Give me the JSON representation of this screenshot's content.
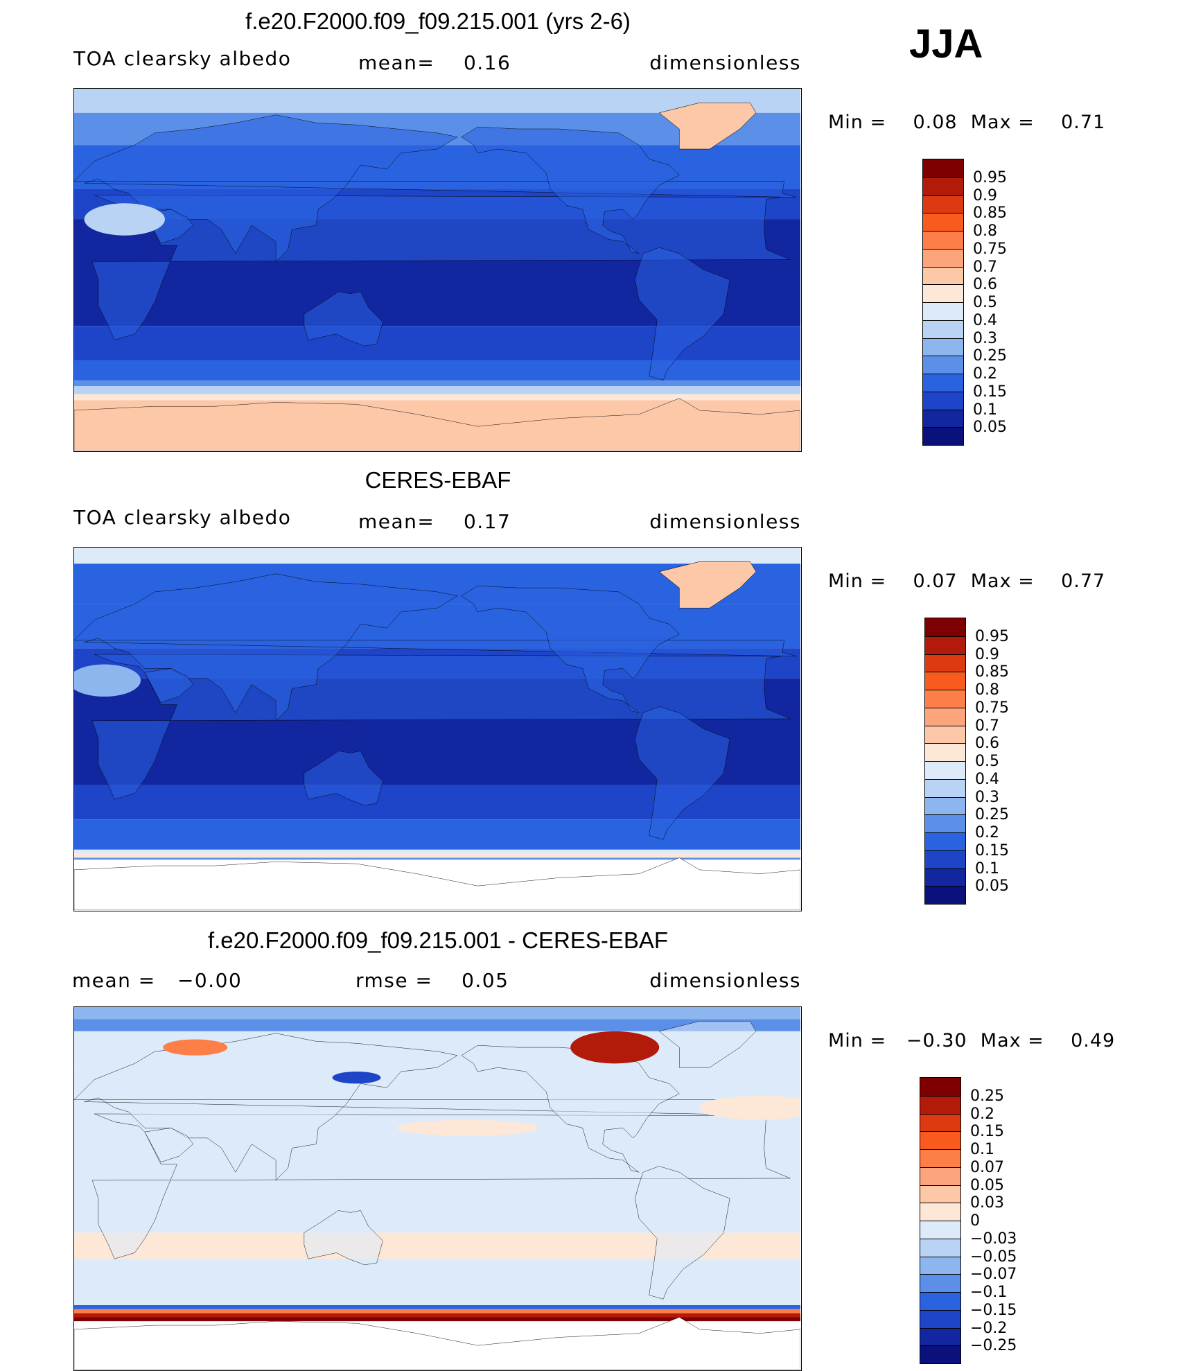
{
  "season": "JJA",
  "panels": [
    {
      "title": "f.e20.F2000.f09_f09.215.001 (yrs 2-6)",
      "left_text": "TOA clearsky albedo",
      "mid_text": "mean=    0.16",
      "right_text": "dimensionless",
      "minmax_text": "Min =    0.08  Max =    0.71",
      "colorbar": {
        "labels": [
          "0.95",
          "0.9",
          "0.85",
          "0.8",
          "0.75",
          "0.7",
          "0.6",
          "0.5",
          "0.4",
          "0.3",
          "0.25",
          "0.2",
          "0.15",
          "0.1",
          "0.05"
        ],
        "colors": [
          "#7f0000",
          "#b21a0a",
          "#dd3a12",
          "#f95a1e",
          "#fd7e46",
          "#fca57c",
          "#fcc8a8",
          "#fde8d8",
          "#dceaf9",
          "#b8d3f3",
          "#8db5ee",
          "#5b8fe8",
          "#2a63e0",
          "#1e44c8",
          "#1226a0",
          "#0a117a"
        ]
      }
    },
    {
      "title": "CERES-EBAF",
      "left_text": "TOA clearsky albedo",
      "mid_text": "mean=    0.17",
      "right_text": "dimensionless",
      "minmax_text": "Min =    0.07  Max =    0.77",
      "colorbar": {
        "labels": [
          "0.95",
          "0.9",
          "0.85",
          "0.8",
          "0.75",
          "0.7",
          "0.6",
          "0.5",
          "0.4",
          "0.3",
          "0.25",
          "0.2",
          "0.15",
          "0.1",
          "0.05"
        ],
        "colors": [
          "#7f0000",
          "#b21a0a",
          "#dd3a12",
          "#f95a1e",
          "#fd7e46",
          "#fca57c",
          "#fcc8a8",
          "#fde8d8",
          "#dceaf9",
          "#b8d3f3",
          "#8db5ee",
          "#5b8fe8",
          "#2a63e0",
          "#1e44c8",
          "#1226a0",
          "#0a117a"
        ]
      }
    },
    {
      "title": "f.e20.F2000.f09_f09.215.001 - CERES-EBAF",
      "left_text": "mean =   −0.00",
      "mid_text": "rmse =    0.05",
      "right_text": "dimensionless",
      "minmax_text": "Min =   −0.30  Max =    0.49",
      "colorbar": {
        "labels": [
          "0.25",
          "0.2",
          "0.15",
          "0.1",
          "0.07",
          "0.05",
          "0.03",
          "0",
          "−0.03",
          "−0.05",
          "−0.07",
          "−0.1",
          "−0.15",
          "−0.2",
          "−0.25"
        ],
        "colors": [
          "#7f0000",
          "#b21a0a",
          "#dd3a12",
          "#f95a1e",
          "#fd7e46",
          "#fca57c",
          "#fcc8a8",
          "#fde8d8",
          "#dceaf9",
          "#b8d3f3",
          "#8db5ee",
          "#5b8fe8",
          "#2a63e0",
          "#1e44c8",
          "#1226a0",
          "#0a117a"
        ]
      }
    }
  ],
  "chart_data": [
    {
      "type": "heatmap",
      "title": "f.e20.F2000.f09_f09.215.001 (yrs 2-6)",
      "variable": "TOA clearsky albedo",
      "units": "dimensionless",
      "season": "JJA",
      "mean": 0.16,
      "min": 0.08,
      "max": 0.71,
      "contour_levels": [
        0.05,
        0.1,
        0.15,
        0.2,
        0.25,
        0.3,
        0.4,
        0.5,
        0.6,
        0.7,
        0.75,
        0.8,
        0.85,
        0.9,
        0.95
      ],
      "zonal_bands": [
        {
          "lat": [
            75,
            90
          ],
          "value": 0.3
        },
        {
          "lat": [
            60,
            75
          ],
          "value": 0.2
        },
        {
          "lat": [
            40,
            60
          ],
          "value": 0.15
        },
        {
          "lat": [
            -30,
            40
          ],
          "value": 0.08
        },
        {
          "lat": [
            -50,
            -30
          ],
          "value": 0.12
        },
        {
          "lat": [
            -60,
            -50
          ],
          "value": 0.2
        },
        {
          "lat": [
            -65,
            -60
          ],
          "value": 0.4
        },
        {
          "lat": [
            -90,
            -65
          ],
          "value": 0.6
        }
      ]
    },
    {
      "type": "heatmap",
      "title": "CERES-EBAF",
      "variable": "TOA clearsky albedo",
      "units": "dimensionless",
      "season": "JJA",
      "mean": 0.17,
      "min": 0.07,
      "max": 0.77,
      "contour_levels": [
        0.05,
        0.1,
        0.15,
        0.2,
        0.25,
        0.3,
        0.4,
        0.5,
        0.6,
        0.7,
        0.75,
        0.8,
        0.85,
        0.9,
        0.95
      ],
      "zonal_bands": [
        {
          "lat": [
            80,
            90
          ],
          "value": 0.4
        },
        {
          "lat": [
            60,
            80
          ],
          "value": 0.2
        },
        {
          "lat": [
            40,
            60
          ],
          "value": 0.15
        },
        {
          "lat": [
            -30,
            40
          ],
          "value": 0.08
        },
        {
          "lat": [
            -50,
            -30
          ],
          "value": 0.12
        },
        {
          "lat": [
            -60,
            -50
          ],
          "value": 0.2
        },
        {
          "lat": [
            -66,
            -60
          ],
          "value": 0.5
        },
        {
          "lat": [
            -90,
            -66
          ],
          "value": null
        }
      ]
    },
    {
      "type": "heatmap",
      "title": "f.e20.F2000.f09_f09.215.001 - CERES-EBAF",
      "units": "dimensionless",
      "season": "JJA",
      "mean": -0.0,
      "rmse": 0.05,
      "min": -0.3,
      "max": 0.49,
      "contour_levels": [
        -0.25,
        -0.2,
        -0.15,
        -0.1,
        -0.07,
        -0.05,
        -0.03,
        0,
        0.03,
        0.05,
        0.07,
        0.1,
        0.15,
        0.2,
        0.25
      ],
      "zonal_bands": [
        {
          "lat": [
            80,
            90
          ],
          "value": -0.05
        },
        {
          "lat": [
            40,
            80
          ],
          "value": -0.03
        },
        {
          "lat": [
            -30,
            40
          ],
          "value": -0.02
        },
        {
          "lat": [
            -45,
            -30
          ],
          "value": 0.02
        },
        {
          "lat": [
            -60,
            -45
          ],
          "value": -0.02
        },
        {
          "lat": [
            -64,
            -60
          ],
          "value": 0.2
        },
        {
          "lat": [
            -66,
            -64
          ],
          "value": 0.25
        },
        {
          "lat": [
            -90,
            -66
          ],
          "value": null
        }
      ]
    }
  ]
}
